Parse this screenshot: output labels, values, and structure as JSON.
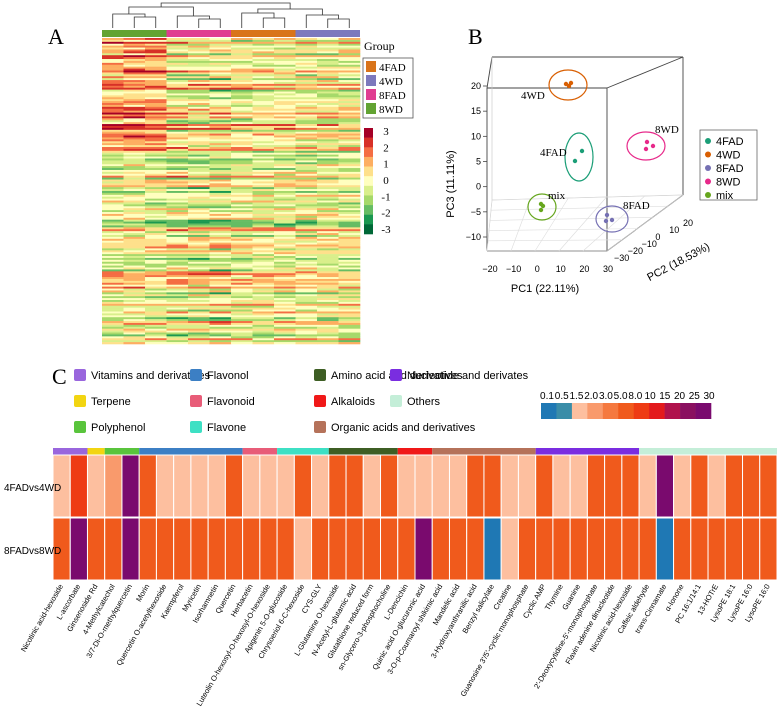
{
  "panel_labels": {
    "a": "A",
    "b": "B",
    "c": "C"
  },
  "colors": {
    "group_4FAD": "#d9741a",
    "group_4WD": "#7d79bd",
    "group_8FAD": "#e03d91",
    "group_8WD": "#62a332",
    "heat_scale": [
      "#006837",
      "#1a9850",
      "#66bd63",
      "#a6d96a",
      "#d9ef8b",
      "#ffffbf",
      "#fee08b",
      "#fdae61",
      "#f46d43",
      "#d73027",
      "#a50026"
    ],
    "pca_4FAD": "#1b9e77",
    "pca_4WD": "#d95f02",
    "pca_8FAD": "#7570b3",
    "pca_8WD": "#e7298a",
    "pca_mix": "#66a61e",
    "c_scale": [
      "#1f78b4",
      "#3a8da8",
      "#fdbf9f",
      "#f99a6c",
      "#f5793f",
      "#f05a1c",
      "#ee3b14",
      "#e31a1c",
      "#b0124c",
      "#8a1060",
      "#7a0a6e"
    ]
  },
  "chart_data": [
    {
      "type": "heatmap",
      "panel": "A",
      "group_label": "Group",
      "legend_groups": [
        "4FAD",
        "4WD",
        "8FAD",
        "8WD"
      ],
      "column_groups": [
        "8WD",
        "8FAD",
        "4FAD",
        "4WD"
      ],
      "columns_per_group": 3,
      "rows": 160,
      "scale_ticks": [
        "3",
        "2",
        "1",
        "0",
        "-1",
        "-2",
        "-3"
      ],
      "ylim": [
        -3,
        3
      ]
    },
    {
      "type": "scatter",
      "panel": "B",
      "xlabel": "PC1 (22.11%)",
      "ylabel": "PC3 (11.11%)",
      "zlabel": "PC2 (18.53%)",
      "x_ticks": [
        "−20",
        "−10",
        "0",
        "10",
        "20",
        "30"
      ],
      "y_ticks": [
        "−10",
        "−5",
        "0",
        "5",
        "10",
        "15",
        "20"
      ],
      "z_ticks": [
        "−30",
        "−20",
        "−10",
        "0",
        "10",
        "20"
      ],
      "legend": [
        "4FAD",
        "4WD",
        "8FAD",
        "8WD",
        "mix"
      ],
      "cluster_labels": {
        "wd4": "4WD",
        "fad4": "4FAD",
        "mix": "mix",
        "wd8": "8WD",
        "fad8": "8FAD"
      }
    },
    {
      "type": "heatmap",
      "panel": "C",
      "rows": [
        "4FADvs4WD",
        "8FADvs8WD"
      ],
      "scale_ticks": [
        "0.1",
        "0.5",
        "1.5",
        "2.0",
        "3.0",
        "5.0",
        "8.0",
        "10",
        "15",
        "20",
        "25",
        "30"
      ],
      "categories": [
        {
          "name": "Vitamins and derivatives",
          "color": "#9966dd",
          "count": 2
        },
        {
          "name": "Terpene",
          "color": "#f2d511",
          "count": 1
        },
        {
          "name": "Polyphenol",
          "color": "#59c43c",
          "count": 2
        },
        {
          "name": "Flavonol",
          "color": "#3c7fc4",
          "count": 6
        },
        {
          "name": "Flavonoid",
          "color": "#e85c78",
          "count": 2
        },
        {
          "name": "Flavone",
          "color": "#3de0c4",
          "count": 3
        },
        {
          "name": "Amino acid and derivatives",
          "color": "#3e5e24",
          "count": 4
        },
        {
          "name": "Alkaloids",
          "color": "#f01818",
          "count": 2
        },
        {
          "name": "Organic acids and derivatives",
          "color": "#b5725a",
          "count": 6
        },
        {
          "name": "Nucleotide and derivates",
          "color": "#7a2de0",
          "count": 6
        },
        {
          "name": "Others",
          "color": "#c4eed8",
          "count": 8
        }
      ],
      "metabolites": [
        "Nicotinic acid-hexoside",
        "L-ascorbate",
        "Ginsenoside Rd",
        "4-Methylcatechol",
        "3/7-Di-O-methylquercetin",
        "Morin",
        "Quercetin O-acetylhexoside",
        "Kaempferol",
        "Myricetin",
        "Isorhamnetin",
        "Quercetin",
        "Herbacetin",
        "Luteolin O-hexosyl-O-hexosyl-O-hexoside",
        "Apigenin 5-O-glucoside",
        "Chrysoeriol 6-C-hexoside",
        "CYS-GLY",
        "L-Glutamine O-hexoside",
        "N-Acetyl-L-glutamic acid",
        "Glutathione reduced form",
        "sn-Glycero-3-phosphocholine",
        "L-Dencichin",
        "Quinic acid O-glucuronic acid",
        "3-O-p-Coumaroyl shikimic acid",
        "Mandelic acid",
        "3-Hydroxyanthranilic acid",
        "Benzyl salicylate",
        "Creatine",
        "Guanosine 3'/5'-cyclic monophosphate",
        "Cyclic AMP",
        "Thymine",
        "Guanine",
        "2'-Deoxycytidine-5'-monophosphate",
        "Flavin adenine dinucleotide",
        "Nicotinic acid-hexoside",
        "Caffeic aldehyde",
        "trans-Cinnamate",
        "α-Ionone",
        "PC 16:1/14:1",
        "13-HOTrE",
        "LysoPE 18:1",
        "LysoPE 16:0",
        "LysoPE 16:0"
      ],
      "values_4FADvs4WD": [
        1.5,
        8,
        1.5,
        2,
        30,
        5,
        1.5,
        1.5,
        1.5,
        1.5,
        5,
        1.5,
        1.5,
        1.5,
        5,
        1.5,
        5,
        5,
        1.5,
        5,
        1.5,
        1.5,
        1.5,
        1.5,
        5,
        5,
        1.5,
        1.5,
        5,
        1.5,
        1.5,
        5,
        5,
        5,
        1.5,
        30,
        1.5,
        5,
        1.5,
        5,
        5,
        5
      ],
      "values_8FADvs8WD": [
        5,
        30,
        5,
        5,
        25,
        5,
        5,
        5,
        5,
        5,
        5,
        5,
        5,
        5,
        1.5,
        5,
        5,
        5,
        5,
        5,
        5,
        30,
        5,
        5,
        5,
        0.1,
        1.5,
        5,
        5,
        5,
        5,
        5,
        5,
        5,
        5,
        0.1,
        5,
        5,
        5,
        5,
        5,
        5
      ]
    }
  ]
}
